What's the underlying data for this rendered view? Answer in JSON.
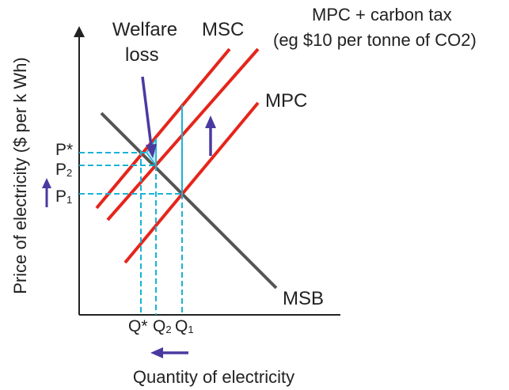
{
  "labels": {
    "welfare_1": "Welfare",
    "welfare_2": "loss",
    "msc": "MSC",
    "tax_1": "MPC + carbon tax",
    "tax_2": "(eg $10 per tonne of CO2)",
    "mpc": "MPC",
    "msb": "MSB",
    "y_axis": "Price of electricity ($ per k Wh)",
    "x_axis": "Quantity of electricity"
  },
  "ticks": {
    "p_star": "P*",
    "p2": "P",
    "p2_sub": "2",
    "p1": "P",
    "p1_sub": "1",
    "q_star": "Q*",
    "q2": "Q",
    "q2_sub": "2",
    "q1": "Q",
    "q1_sub": "1"
  },
  "colors": {
    "supply_lines": "#e5251b",
    "demand_line": "#555555",
    "guides": "#19b3d6",
    "arrows": "#4a3aa0",
    "axes": "#222222"
  }
}
